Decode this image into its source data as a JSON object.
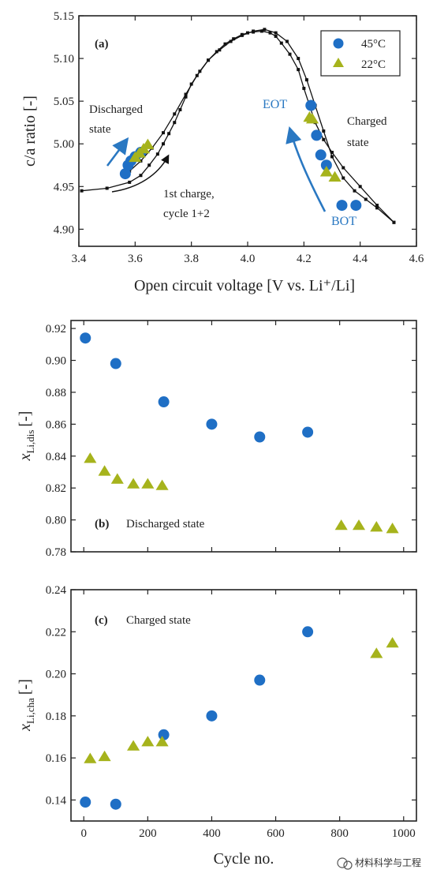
{
  "colors": {
    "series_45": "#1f6fc5",
    "series_22": "#a6b31c",
    "arrow_blue": "#2a78c2",
    "curve": "#111111"
  },
  "legend": {
    "items": [
      "45°C",
      "22°C"
    ]
  },
  "watermark": "材料科学与工程",
  "chart_data": [
    {
      "type": "scatter",
      "panel": "(a)",
      "xlabel": "Open circuit voltage [V vs. Li⁺/Li]",
      "ylabel": "c/a ratio [-]",
      "xlim": [
        3.4,
        4.6
      ],
      "ylim": [
        4.88,
        5.15
      ],
      "xticks": [
        "3.4",
        "3.6",
        "3.8",
        "4.0",
        "4.2",
        "4.4",
        "4.6"
      ],
      "yticks": [
        "4.90",
        "4.95",
        "5.00",
        "5.05",
        "5.10",
        "5.15"
      ],
      "annotations": {
        "discharged": [
          "Discharged",
          "state"
        ],
        "charged": [
          "Charged",
          "state"
        ],
        "first_charge": [
          "1st charge,",
          "cycle 1+2"
        ],
        "eot": "EOT",
        "bot": "BOT"
      },
      "curve1": {
        "x": [
          3.41,
          3.5,
          3.58,
          3.62,
          3.65,
          3.68,
          3.7,
          3.72,
          3.74,
          3.76,
          3.78,
          3.8,
          3.83,
          3.86,
          3.89,
          3.92,
          3.95,
          3.98,
          4.0,
          4.02,
          4.05,
          4.08,
          4.1,
          4.12,
          4.15,
          4.18,
          4.2,
          4.22,
          4.24,
          4.27,
          4.3,
          4.34,
          4.4,
          4.46,
          4.52
        ],
        "y": [
          4.945,
          4.948,
          4.955,
          4.963,
          4.975,
          4.988,
          5.0,
          5.012,
          5.025,
          5.04,
          5.055,
          5.07,
          5.085,
          5.098,
          5.108,
          5.117,
          5.123,
          5.128,
          5.13,
          5.131,
          5.132,
          5.13,
          5.126,
          5.118,
          5.105,
          5.087,
          5.065,
          5.045,
          5.025,
          5.005,
          4.99,
          4.972,
          4.95,
          4.928,
          4.908
        ]
      },
      "curve2": {
        "x": [
          3.58,
          3.62,
          3.66,
          3.7,
          3.74,
          3.78,
          3.82,
          3.86,
          3.9,
          3.94,
          3.98,
          4.02,
          4.06,
          4.1,
          4.14,
          4.18,
          4.21,
          4.24,
          4.27,
          4.3,
          4.34,
          4.38,
          4.42,
          4.46,
          4.52
        ],
        "y": [
          4.968,
          4.98,
          4.995,
          5.013,
          5.035,
          5.058,
          5.08,
          5.098,
          5.11,
          5.12,
          5.127,
          5.132,
          5.134,
          5.13,
          5.12,
          5.1,
          5.075,
          5.045,
          5.015,
          4.985,
          4.96,
          4.945,
          4.935,
          4.925,
          4.908
        ]
      },
      "series": [
        {
          "name": "45°C",
          "marker": "circle",
          "x": [
            3.565,
            3.575,
            3.585,
            3.6,
            3.62,
            4.225,
            4.245,
            4.26,
            4.28,
            4.335,
            4.385
          ],
          "y": [
            4.965,
            4.975,
            4.98,
            4.985,
            4.99,
            5.045,
            5.01,
            4.987,
            4.975,
            4.928,
            4.928
          ]
        },
        {
          "name": "22°C",
          "marker": "triangle",
          "x": [
            3.6,
            3.615,
            3.63,
            3.645,
            4.22,
            4.23,
            4.28,
            4.31
          ],
          "y": [
            4.985,
            4.99,
            4.995,
            5.0,
            5.032,
            5.03,
            4.968,
            4.962
          ]
        }
      ]
    },
    {
      "type": "scatter",
      "panel": "(b)",
      "title": "Discharged state",
      "ylabel_main": "x",
      "ylabel_sub": "Li,dis",
      "ylabel_tail": "[-]",
      "xlim": [
        -40,
        1040
      ],
      "ylim": [
        0.78,
        0.925
      ],
      "yticks": [
        "0.78",
        "0.80",
        "0.82",
        "0.84",
        "0.86",
        "0.88",
        "0.90",
        "0.92"
      ],
      "series": [
        {
          "name": "45°C",
          "marker": "circle",
          "x": [
            5,
            100,
            250,
            400,
            550,
            700
          ],
          "y": [
            0.914,
            0.898,
            0.874,
            0.86,
            0.852,
            0.855
          ]
        },
        {
          "name": "22°C",
          "marker": "triangle",
          "x": [
            20,
            65,
            105,
            155,
            200,
            245,
            805,
            860,
            915,
            965
          ],
          "y": [
            0.839,
            0.831,
            0.826,
            0.823,
            0.823,
            0.822,
            0.797,
            0.797,
            0.796,
            0.795
          ]
        }
      ]
    },
    {
      "type": "scatter",
      "panel": "(c)",
      "title": "Charged state",
      "xlabel": "Cycle no.",
      "ylabel_main": "x",
      "ylabel_sub": "Li,cha",
      "ylabel_tail": "[-]",
      "xlim": [
        -40,
        1040
      ],
      "ylim": [
        0.13,
        0.24
      ],
      "xticks": [
        "0",
        "200",
        "400",
        "600",
        "800",
        "1000"
      ],
      "yticks": [
        "0.14",
        "0.16",
        "0.18",
        "0.20",
        "0.22",
        "0.24"
      ],
      "series": [
        {
          "name": "45°C",
          "marker": "circle",
          "x": [
            5,
            100,
            250,
            400,
            550,
            700
          ],
          "y": [
            0.139,
            0.138,
            0.171,
            0.18,
            0.197,
            0.22
          ]
        },
        {
          "name": "22°C",
          "marker": "triangle",
          "x": [
            20,
            65,
            155,
            200,
            245,
            915,
            965
          ],
          "y": [
            0.16,
            0.161,
            0.166,
            0.168,
            0.168,
            0.21,
            0.215
          ]
        }
      ]
    }
  ]
}
